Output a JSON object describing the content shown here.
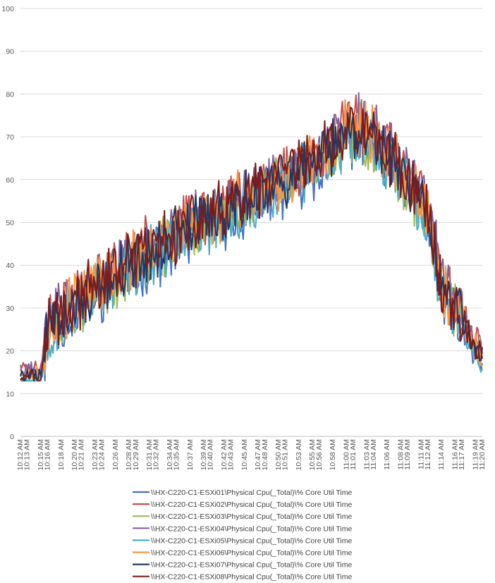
{
  "chart_data": {
    "type": "line",
    "title": "",
    "xlabel": "",
    "ylabel": "",
    "ylim": [
      0,
      100
    ],
    "y_ticks": [
      0,
      10,
      20,
      30,
      40,
      50,
      60,
      70,
      80,
      90,
      100
    ],
    "grid": "horizontal",
    "legend_position": "bottom",
    "x_start": "10:12 AM",
    "x_end": "11:20 AM",
    "x_tick_labels": [
      "10:12 AM",
      "10:13 AM",
      "10:15 AM",
      "10:16 AM",
      "10:18 AM",
      "10:20 AM",
      "10:21 AM",
      "10:23 AM",
      "10:24 AM",
      "10:26 AM",
      "10:28 AM",
      "10:29 AM",
      "10:31 AM",
      "10:32 AM",
      "10:34 AM",
      "10:35 AM",
      "10:37 AM",
      "10:39 AM",
      "10:40 AM",
      "10:42 AM",
      "10:43 AM",
      "10:45 AM",
      "10:47 AM",
      "10:48 AM",
      "10:50 AM",
      "10:51 AM",
      "10:53 AM",
      "10:55 AM",
      "10:56 AM",
      "10:58 AM",
      "11:00 AM",
      "11:01 AM",
      "11:03 AM",
      "11:04 AM",
      "11:06 AM",
      "11:08 AM",
      "11:09 AM",
      "11:11 AM",
      "11:12 AM",
      "11:14 AM",
      "11:16 AM",
      "11:17 AM",
      "11:19 AM",
      "11:20 AM"
    ],
    "trend_key_points": [
      {
        "x": "10:12 AM",
        "y": 14.5
      },
      {
        "x": "10:15 AM",
        "y": 14.5
      },
      {
        "x": "10:16 AM",
        "y": 26
      },
      {
        "x": "10:20 AM",
        "y": 31
      },
      {
        "x": "10:26 AM",
        "y": 38
      },
      {
        "x": "10:35 AM",
        "y": 47
      },
      {
        "x": "10:45 AM",
        "y": 55
      },
      {
        "x": "10:55 AM",
        "y": 64
      },
      {
        "x": "11:01 AM",
        "y": 72
      },
      {
        "x": "11:04 AM",
        "y": 70
      },
      {
        "x": "11:09 AM",
        "y": 60
      },
      {
        "x": "11:12 AM",
        "y": 52
      },
      {
        "x": "11:14 AM",
        "y": 35
      },
      {
        "x": "11:17 AM",
        "y": 27
      },
      {
        "x": "11:20 AM",
        "y": 18
      }
    ],
    "series": [
      {
        "name": "\\\\HX-C220-C1-ESXi01\\Physical Cpu(_Total)\\% Core Util Time",
        "color": "#4472C4",
        "seed": 11,
        "bias": -2.0
      },
      {
        "name": "\\\\HX-C220-C1-ESXi02\\Physical Cpu(_Total)\\% Core Util Time",
        "color": "#C0504D",
        "seed": 23,
        "bias": 1.5
      },
      {
        "name": "\\\\HX-C220-C1-ESXi03\\Physical Cpu(_Total)\\% Core Util Time",
        "color": "#9BBB59",
        "seed": 37,
        "bias": -1.0
      },
      {
        "name": "\\\\HX-C220-C1-ESXi04\\Physical Cpu(_Total)\\% Core Util Time",
        "color": "#8064A2",
        "seed": 41,
        "bias": 1.0
      },
      {
        "name": "\\\\HX-C220-C1-ESXi05\\Physical Cpu(_Total)\\% Core Util Time",
        "color": "#4BACC6",
        "seed": 53,
        "bias": -1.5
      },
      {
        "name": "\\\\HX-C220-C1-ESXi06\\Physical Cpu(_Total)\\% Core Util Time",
        "color": "#F79646",
        "seed": 67,
        "bias": 0.5
      },
      {
        "name": "\\\\HX-C220-C1-ESXi07\\Physical Cpu(_Total)\\% Core Util Time",
        "color": "#1F3864",
        "seed": 79,
        "bias": 0.0
      },
      {
        "name": "\\\\HX-C220-C1-ESXi08\\Physical Cpu(_Total)\\% Core Util Time",
        "color": "#7B1C1C",
        "seed": 97,
        "bias": 0.2
      }
    ]
  }
}
